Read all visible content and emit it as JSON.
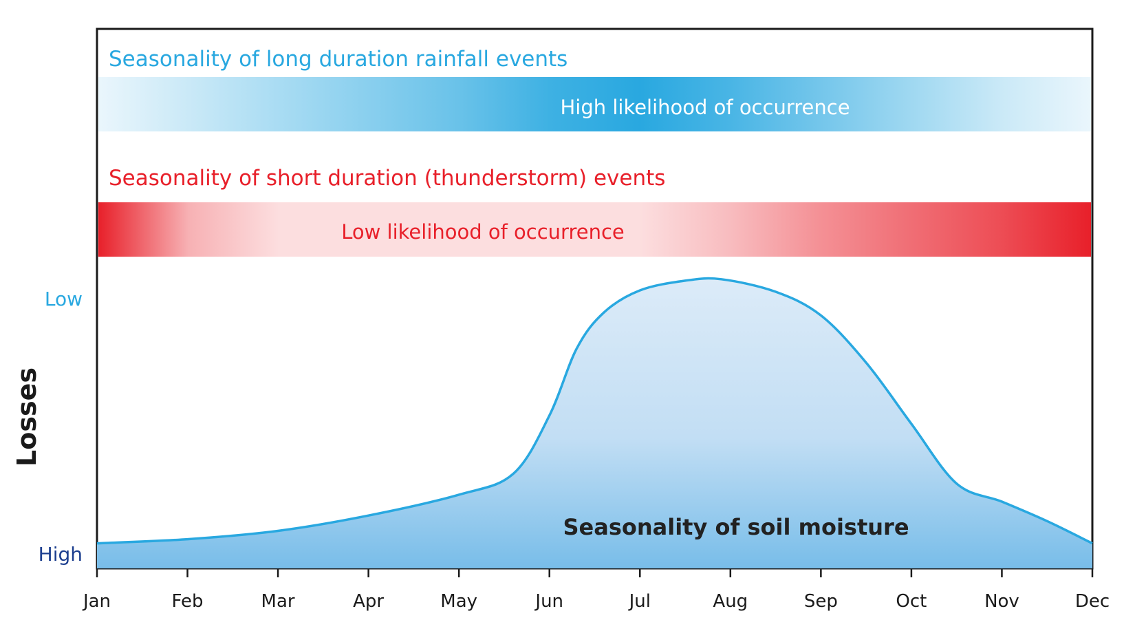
{
  "chart_data": {
    "type": "area",
    "title": "",
    "ylabel": "Losses",
    "y_end_labels": {
      "top": "Low",
      "bottom": "High"
    },
    "x_ticks": [
      "Jan",
      "Feb",
      "Mar",
      "Apr",
      "May",
      "Jun",
      "Jul",
      "Aug",
      "Sep",
      "Oct",
      "Nov",
      "Dec"
    ],
    "xlim": [
      0,
      11
    ],
    "ylim": [
      0,
      1
    ],
    "grid": false,
    "bands": [
      {
        "name": "Seasonality of long duration rainfall events",
        "label": "High likelihood of occurrence",
        "color": "#29a8e0",
        "intensity_by_month": [
          0.1,
          0.25,
          0.4,
          0.55,
          0.7,
          0.9,
          1.0,
          0.85,
          0.65,
          0.45,
          0.25,
          0.1
        ]
      },
      {
        "name": "Seasonality of short duration (thunderstorm) events",
        "label": "Low likelihood of occurrence",
        "color": "#e8202a",
        "intensity_by_month": [
          1.0,
          0.35,
          0.15,
          0.15,
          0.15,
          0.15,
          0.15,
          0.3,
          0.5,
          0.65,
          0.8,
          1.0
        ]
      }
    ],
    "series": [
      {
        "name": "Seasonality of soil moisture",
        "color": "#29a8e0",
        "x": [
          0,
          1,
          2,
          3,
          4,
          4.6,
          5,
          5.3,
          5.6,
          6,
          6.5,
          6.9,
          7.5,
          8,
          8.5,
          9,
          9.5,
          10,
          10.5,
          11
        ],
        "y": [
          0.09,
          0.105,
          0.135,
          0.19,
          0.265,
          0.34,
          0.55,
          0.79,
          0.92,
          1.0,
          1.035,
          1.04,
          0.995,
          0.91,
          0.74,
          0.52,
          0.305,
          0.24,
          0.17,
          0.09
        ]
      }
    ]
  }
}
